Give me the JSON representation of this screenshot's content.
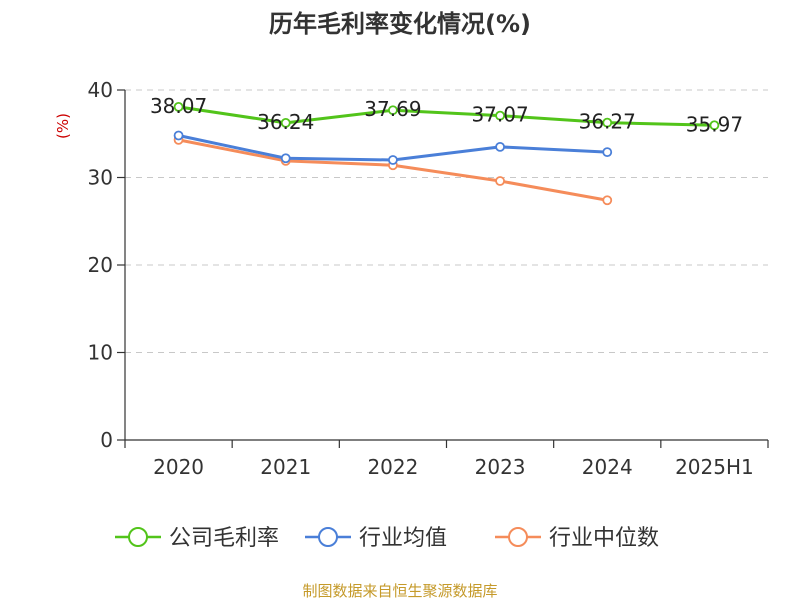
{
  "chart_data": {
    "type": "line",
    "title": "历年毛利率变化情况(%)",
    "ylabel": "(%)",
    "xlabel": "",
    "categories": [
      "2020",
      "2021",
      "2022",
      "2023",
      "2024",
      "2025H1"
    ],
    "ylim": [
      0,
      40
    ],
    "yticks": [
      0,
      10,
      20,
      30,
      40
    ],
    "grid": true,
    "legend_position": "bottom",
    "series": [
      {
        "name": "公司毛利率",
        "color": "#52c41a",
        "values": [
          38.07,
          36.24,
          37.69,
          37.07,
          36.27,
          35.97
        ],
        "labels": [
          "38.07",
          "36.24",
          "37.69",
          "37.07",
          "36.27",
          "35.97"
        ]
      },
      {
        "name": "行业均值",
        "color": "#4a7fd8",
        "values": [
          34.8,
          32.2,
          32.0,
          33.5,
          32.9,
          null
        ]
      },
      {
        "name": "行业中位数",
        "color": "#f58c5a",
        "values": [
          34.3,
          31.9,
          31.4,
          29.6,
          27.4,
          null
        ]
      }
    ]
  },
  "footer": {
    "source": "制图数据来自恒生聚源数据库"
  }
}
